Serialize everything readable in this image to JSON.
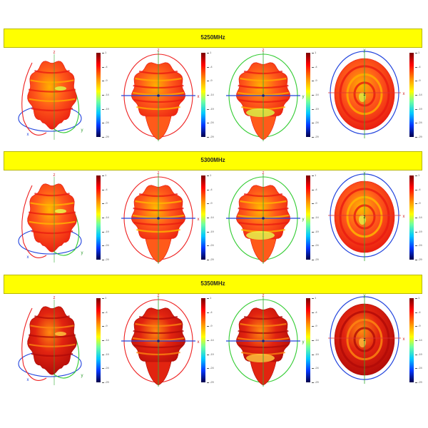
{
  "sections": [
    {
      "label": "5250MHz",
      "style": 0
    },
    {
      "label": "5300MHz",
      "style": 1
    },
    {
      "label": "5350MHz",
      "style": 2
    }
  ],
  "colorbar_ticks": [
    "1",
    "-4",
    "-9",
    "-14",
    "-19",
    "-24",
    "-29"
  ],
  "axis_letters": {
    "x": "x",
    "y": "y",
    "z": "z"
  },
  "colors": {
    "banner": "#ffff00",
    "ring_red": "#ee2222",
    "ring_green": "#33cc33",
    "ring_blue": "#2244dd"
  }
}
